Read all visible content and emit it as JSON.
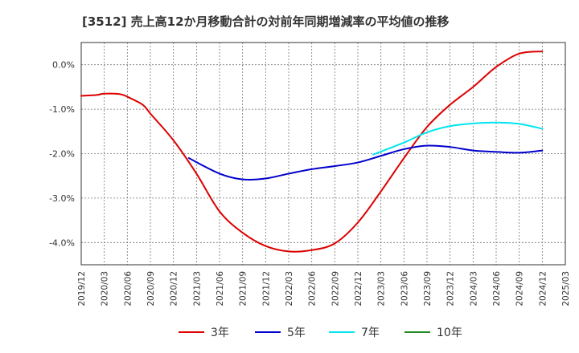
{
  "title": "[3512]  売上高12か月移動合計の対前年同期増減率の平均値の推移",
  "chart_data": {
    "type": "line",
    "title": "[3512]  売上高12か月移動合計の対前年同期増減率の平均値の推移",
    "xlabel": "",
    "ylabel": "",
    "x_ticks": [
      "2019/12",
      "2020/03",
      "2020/06",
      "2020/09",
      "2020/12",
      "2021/03",
      "2021/06",
      "2021/09",
      "2021/12",
      "2022/03",
      "2022/06",
      "2022/09",
      "2022/12",
      "2023/03",
      "2023/06",
      "2023/09",
      "2023/12",
      "2024/03",
      "2024/06",
      "2024/09",
      "2024/12",
      "2025/03"
    ],
    "y_ticks": [
      {
        "value": 0.0,
        "label": "0.0%"
      },
      {
        "value": -1.0,
        "label": "-1.0%"
      },
      {
        "value": -2.0,
        "label": "-2.0%"
      },
      {
        "value": -3.0,
        "label": "-3.0%"
      },
      {
        "value": -4.0,
        "label": "-4.0%"
      }
    ],
    "ylim": [
      -4.5,
      0.5
    ],
    "grid": true,
    "legend_position": "bottom",
    "series": [
      {
        "name": "3年",
        "color": "#dd0000",
        "points": [
          [
            "2019/12",
            -0.7
          ],
          [
            "2020/02",
            -0.68
          ],
          [
            "2020/03",
            -0.65
          ],
          [
            "2020/05",
            -0.66
          ],
          [
            "2020/06",
            -0.72
          ],
          [
            "2020/08",
            -0.9
          ],
          [
            "2020/09",
            -1.1
          ],
          [
            "2020/12",
            -1.7
          ],
          [
            "2021/03",
            -2.45
          ],
          [
            "2021/06",
            -3.3
          ],
          [
            "2021/09",
            -3.78
          ],
          [
            "2021/12",
            -4.08
          ],
          [
            "2022/03",
            -4.2
          ],
          [
            "2022/06",
            -4.17
          ],
          [
            "2022/09",
            -4.02
          ],
          [
            "2022/12",
            -3.55
          ],
          [
            "2023/03",
            -2.85
          ],
          [
            "2023/06",
            -2.1
          ],
          [
            "2023/09",
            -1.4
          ],
          [
            "2023/12",
            -0.9
          ],
          [
            "2024/03",
            -0.5
          ],
          [
            "2024/06",
            -0.05
          ],
          [
            "2024/09",
            0.25
          ],
          [
            "2024/12",
            0.3
          ]
        ]
      },
      {
        "name": "5年",
        "color": "#0000cc",
        "points": [
          [
            "2021/02",
            -2.1
          ],
          [
            "2021/06",
            -2.45
          ],
          [
            "2021/09",
            -2.58
          ],
          [
            "2021/12",
            -2.56
          ],
          [
            "2022/03",
            -2.45
          ],
          [
            "2022/06",
            -2.35
          ],
          [
            "2022/09",
            -2.28
          ],
          [
            "2022/12",
            -2.2
          ],
          [
            "2023/03",
            -2.05
          ],
          [
            "2023/06",
            -1.9
          ],
          [
            "2023/09",
            -1.82
          ],
          [
            "2023/12",
            -1.85
          ],
          [
            "2024/03",
            -1.93
          ],
          [
            "2024/06",
            -1.96
          ],
          [
            "2024/09",
            -1.98
          ],
          [
            "2024/12",
            -1.93
          ]
        ]
      },
      {
        "name": "7年",
        "color": "#00e5ee",
        "points": [
          [
            "2023/02",
            -2.02
          ],
          [
            "2023/06",
            -1.75
          ],
          [
            "2023/09",
            -1.52
          ],
          [
            "2023/12",
            -1.38
          ],
          [
            "2024/03",
            -1.32
          ],
          [
            "2024/06",
            -1.3
          ],
          [
            "2024/09",
            -1.33
          ],
          [
            "2024/12",
            -1.44
          ]
        ]
      },
      {
        "name": "10年",
        "color": "#228b22",
        "points": []
      }
    ]
  }
}
